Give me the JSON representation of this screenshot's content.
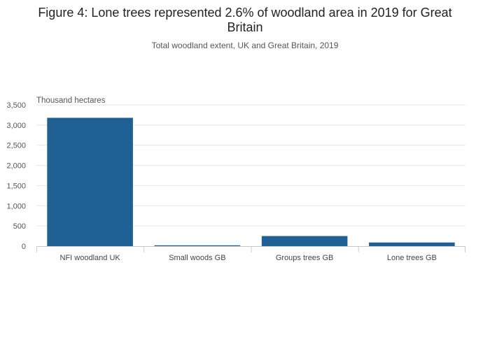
{
  "chart_data": {
    "type": "bar",
    "title_line1": "Figure 4: Lone trees represented 2.6% of woodland area in 2019 for Great",
    "title_line2": "Britain",
    "subtitle": "Total woodland extent, UK and Great Britain, 2019",
    "xlabel": "",
    "ylabel": "Thousand hectares",
    "categories": [
      "NFI woodland UK",
      "Small woods GB",
      "Groups trees GB",
      "Lone trees GB"
    ],
    "values": [
      3180,
      20,
      250,
      90
    ],
    "ylim": [
      0,
      3500
    ],
    "yticks": [
      0,
      500,
      1000,
      1500,
      2000,
      2500,
      3000,
      3500
    ],
    "ytick_labels": [
      "0",
      "500",
      "1,000",
      "1,500",
      "2,000",
      "2,500",
      "3,000",
      "3,500"
    ],
    "grid": true,
    "bar_color": "#206095"
  }
}
